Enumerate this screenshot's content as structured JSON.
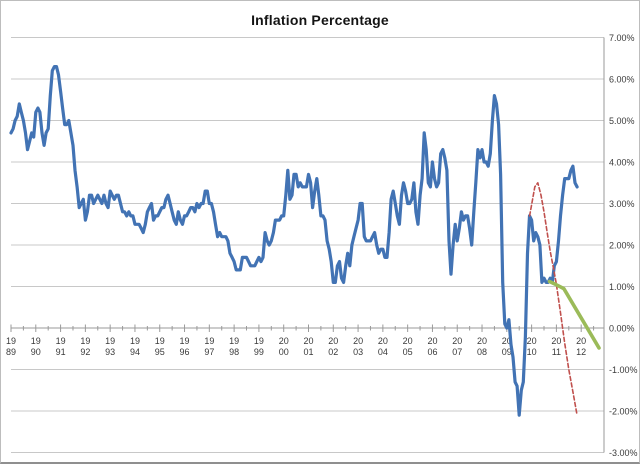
{
  "chart": {
    "title": "Inflation Percentage"
  },
  "chart_data": {
    "type": "line",
    "title": "Inflation Percentage",
    "xlabel": "",
    "ylabel": "",
    "legend": "none",
    "grid": "horizontal",
    "y_axis": {
      "side": "right",
      "ylim": [
        -3,
        7
      ],
      "tick_values": [
        7,
        6,
        5,
        4,
        3,
        2,
        1,
        0,
        -1,
        -2,
        -3
      ],
      "tick_labels": [
        "7.00%",
        "6.00%",
        "5.00%",
        "4.00%",
        "3.00%",
        "2.00%",
        "1.00%",
        "0.00%",
        "-1.00%",
        "-2.00%",
        "-3.00%"
      ]
    },
    "x_axis": {
      "range_years": [
        1989.0,
        2012.92
      ],
      "label_years": [
        1989,
        1990,
        1991,
        1992,
        1993,
        1994,
        1995,
        1996,
        1997,
        1998,
        1999,
        2000,
        2001,
        2002,
        2003,
        2004,
        2005,
        2006,
        2007,
        2008,
        2009,
        2010,
        2011,
        2012
      ],
      "labels": [
        [
          "19",
          "89"
        ],
        [
          "19",
          "90"
        ],
        [
          "19",
          "91"
        ],
        [
          "19",
          "92"
        ],
        [
          "19",
          "93"
        ],
        [
          "19",
          "94"
        ],
        [
          "19",
          "95"
        ],
        [
          "19",
          "96"
        ],
        [
          "19",
          "97"
        ],
        [
          "19",
          "98"
        ],
        [
          "19",
          "99"
        ],
        [
          "20",
          "00"
        ],
        [
          "20",
          "01"
        ],
        [
          "20",
          "02"
        ],
        [
          "20",
          "03"
        ],
        [
          "20",
          "04"
        ],
        [
          "20",
          "05"
        ],
        [
          "20",
          "06"
        ],
        [
          "20",
          "07"
        ],
        [
          "20",
          "08"
        ],
        [
          "20",
          "09"
        ],
        [
          "20",
          "10"
        ],
        [
          "20",
          "11"
        ],
        [
          "20",
          "12"
        ]
      ]
    },
    "series": [
      {
        "name": "blue-line",
        "color": "#4273b4",
        "style": "solid",
        "width": 3.2,
        "start_year": 1989,
        "frequency": "monthly",
        "monthly_values": [
          4.7,
          4.8,
          5.0,
          5.1,
          5.4,
          5.2,
          5.0,
          4.7,
          4.3,
          4.5,
          4.7,
          4.6,
          5.2,
          5.3,
          5.2,
          4.7,
          4.4,
          4.7,
          4.8,
          5.6,
          6.2,
          6.3,
          6.3,
          6.1,
          5.7,
          5.3,
          4.9,
          4.9,
          5.0,
          4.7,
          4.4,
          3.8,
          3.4,
          2.9,
          3.0,
          3.1,
          2.6,
          2.8,
          3.2,
          3.2,
          3.0,
          3.1,
          3.2,
          3.1,
          3.0,
          3.2,
          3.0,
          2.9,
          3.3,
          3.2,
          3.1,
          3.2,
          3.2,
          3.0,
          2.8,
          2.8,
          2.7,
          2.8,
          2.7,
          2.7,
          2.5,
          2.5,
          2.5,
          2.4,
          2.3,
          2.5,
          2.8,
          2.9,
          3.0,
          2.6,
          2.7,
          2.7,
          2.8,
          2.9,
          2.9,
          3.1,
          3.2,
          3.0,
          2.8,
          2.6,
          2.5,
          2.8,
          2.6,
          2.5,
          2.7,
          2.7,
          2.8,
          2.9,
          2.9,
          2.8,
          3.0,
          2.9,
          3.0,
          3.0,
          3.3,
          3.3,
          3.0,
          3.0,
          2.8,
          2.5,
          2.2,
          2.3,
          2.2,
          2.2,
          2.2,
          2.1,
          1.8,
          1.7,
          1.6,
          1.4,
          1.4,
          1.4,
          1.7,
          1.7,
          1.7,
          1.6,
          1.5,
          1.5,
          1.5,
          1.6,
          1.7,
          1.6,
          1.7,
          2.3,
          2.1,
          2.0,
          2.1,
          2.3,
          2.6,
          2.6,
          2.6,
          2.7,
          2.7,
          3.2,
          3.8,
          3.1,
          3.2,
          3.7,
          3.7,
          3.4,
          3.5,
          3.4,
          3.4,
          3.4,
          3.7,
          3.5,
          2.9,
          3.3,
          3.6,
          3.2,
          2.7,
          2.7,
          2.6,
          2.1,
          1.9,
          1.6,
          1.1,
          1.1,
          1.5,
          1.6,
          1.2,
          1.1,
          1.5,
          1.8,
          1.5,
          2.0,
          2.2,
          2.4,
          2.6,
          3.0,
          3.0,
          2.2,
          2.1,
          2.1,
          2.1,
          2.2,
          2.3,
          2.0,
          1.8,
          1.9,
          1.9,
          1.7,
          1.7,
          2.3,
          3.1,
          3.3,
          3.0,
          2.7,
          2.5,
          3.2,
          3.5,
          3.3,
          3.0,
          3.0,
          3.1,
          3.5,
          2.8,
          2.5,
          3.2,
          3.6,
          4.7,
          4.3,
          3.5,
          3.4,
          4.0,
          3.6,
          3.4,
          3.5,
          4.2,
          4.3,
          4.1,
          3.8,
          2.1,
          1.3,
          2.0,
          2.5,
          2.1,
          2.4,
          2.8,
          2.6,
          2.7,
          2.7,
          2.4,
          2.0,
          2.8,
          3.5,
          4.3,
          4.1,
          4.3,
          4.0,
          4.0,
          3.9,
          4.2,
          5.0,
          5.6,
          5.4,
          4.9,
          3.7,
          1.1,
          0.1,
          0.0,
          0.2,
          -0.4,
          -0.7,
          -1.3,
          -1.4,
          -2.1,
          -1.5,
          -1.3,
          -0.2,
          1.8,
          2.7,
          2.6,
          2.1,
          2.3,
          2.2,
          2.0,
          1.1,
          1.2,
          1.1,
          1.1,
          1.2,
          1.1,
          1.5,
          1.6,
          2.1,
          2.7,
          3.2,
          3.6,
          3.6,
          3.6,
          3.8,
          3.9,
          3.5,
          3.4
        ]
      },
      {
        "name": "red-dashed-line",
        "color": "#c0504d",
        "style": "dashed",
        "width": 1.6,
        "points": [
          [
            2009.92,
            2.7
          ],
          [
            2010.04,
            3.1
          ],
          [
            2010.13,
            3.4
          ],
          [
            2010.25,
            3.5
          ],
          [
            2010.38,
            3.2
          ],
          [
            2010.5,
            2.8
          ],
          [
            2010.63,
            2.3
          ],
          [
            2010.75,
            1.85
          ],
          [
            2010.88,
            1.45
          ],
          [
            2011.0,
            1.05
          ],
          [
            2011.17,
            0.35
          ],
          [
            2011.33,
            -0.35
          ],
          [
            2011.5,
            -1.0
          ],
          [
            2011.67,
            -1.55
          ],
          [
            2011.82,
            -2.05
          ]
        ]
      },
      {
        "name": "green-line",
        "color": "#9bbb59",
        "style": "solid",
        "width": 3.6,
        "points": [
          [
            2010.72,
            1.12
          ],
          [
            2011.0,
            1.04
          ],
          [
            2011.3,
            0.95
          ],
          [
            2012.72,
            -0.48
          ]
        ]
      }
    ],
    "colors": {
      "gridline": "#c8c8c8",
      "axis_line": "#9a9a9a",
      "tick": "#9a9a9a",
      "axis_text": "#3a3a3a",
      "background": "#ffffff"
    }
  }
}
